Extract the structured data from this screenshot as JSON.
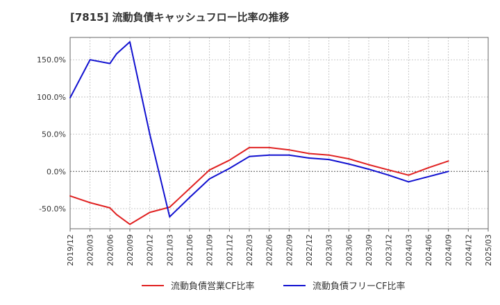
{
  "chart_data": {
    "type": "line",
    "title": "[7815]  流動負債キャッシュフロー比率の推移",
    "x": [
      "2019/12",
      "2020/03",
      "2020/06",
      "2020/09",
      "2020/12",
      "2021/03",
      "2021/06",
      "2021/09",
      "2021/12",
      "2022/03",
      "2022/06",
      "2022/09",
      "2022/12",
      "2023/03",
      "2023/06",
      "2023/09",
      "2023/12",
      "2024/03",
      "2024/06",
      "2024/09",
      "2024/12",
      "2025/03"
    ],
    "y_ticks": [
      150,
      100,
      50,
      0,
      -50
    ],
    "y_tick_labels": [
      "150.0%",
      "100.0%",
      "50.0%",
      "0.0%",
      "-50.0%"
    ],
    "ylim": [
      -77,
      180
    ],
    "grid": true,
    "legend_position": "bottom",
    "series": [
      {
        "name": "流動負債営業CF比率",
        "color": "#e02020",
        "points": [
          {
            "x": "2019/12",
            "y": -33
          },
          {
            "x": "2020/03",
            "y": -42
          },
          {
            "x": "2020/06",
            "y": -49
          },
          {
            "x": "2020/07",
            "y": -58
          },
          {
            "x": "2020/09",
            "y": -71
          },
          {
            "x": "2020/12",
            "y": -55
          },
          {
            "x": "2021/03",
            "y": -48
          },
          {
            "x": "2021/06",
            "y": -23
          },
          {
            "x": "2021/09",
            "y": 2
          },
          {
            "x": "2021/12",
            "y": 15
          },
          {
            "x": "2022/03",
            "y": 32
          },
          {
            "x": "2022/06",
            "y": 32
          },
          {
            "x": "2022/09",
            "y": 29
          },
          {
            "x": "2022/12",
            "y": 24
          },
          {
            "x": "2023/03",
            "y": 22
          },
          {
            "x": "2023/06",
            "y": 17
          },
          {
            "x": "2023/09",
            "y": 9
          },
          {
            "x": "2023/12",
            "y": 2
          },
          {
            "x": "2024/03",
            "y": -5
          },
          {
            "x": "2024/06",
            "y": 5
          },
          {
            "x": "2024/09",
            "y": 14
          }
        ]
      },
      {
        "name": "流動負債フリーCF比率",
        "color": "#1010d0",
        "points": [
          {
            "x": "2019/12",
            "y": 99
          },
          {
            "x": "2020/03",
            "y": 150
          },
          {
            "x": "2020/06",
            "y": 145
          },
          {
            "x": "2020/07",
            "y": 158
          },
          {
            "x": "2020/09",
            "y": 174
          },
          {
            "x": "2020/12",
            "y": 50
          },
          {
            "x": "2021/03",
            "y": -61
          },
          {
            "x": "2021/06",
            "y": -35
          },
          {
            "x": "2021/09",
            "y": -10
          },
          {
            "x": "2021/12",
            "y": 4
          },
          {
            "x": "2022/03",
            "y": 20
          },
          {
            "x": "2022/06",
            "y": 22
          },
          {
            "x": "2022/09",
            "y": 22
          },
          {
            "x": "2022/12",
            "y": 18
          },
          {
            "x": "2023/03",
            "y": 16
          },
          {
            "x": "2023/06",
            "y": 10
          },
          {
            "x": "2023/09",
            "y": 3
          },
          {
            "x": "2023/12",
            "y": -5
          },
          {
            "x": "2024/03",
            "y": -14
          },
          {
            "x": "2024/06",
            "y": -7
          },
          {
            "x": "2024/09",
            "y": 0
          }
        ]
      }
    ]
  }
}
